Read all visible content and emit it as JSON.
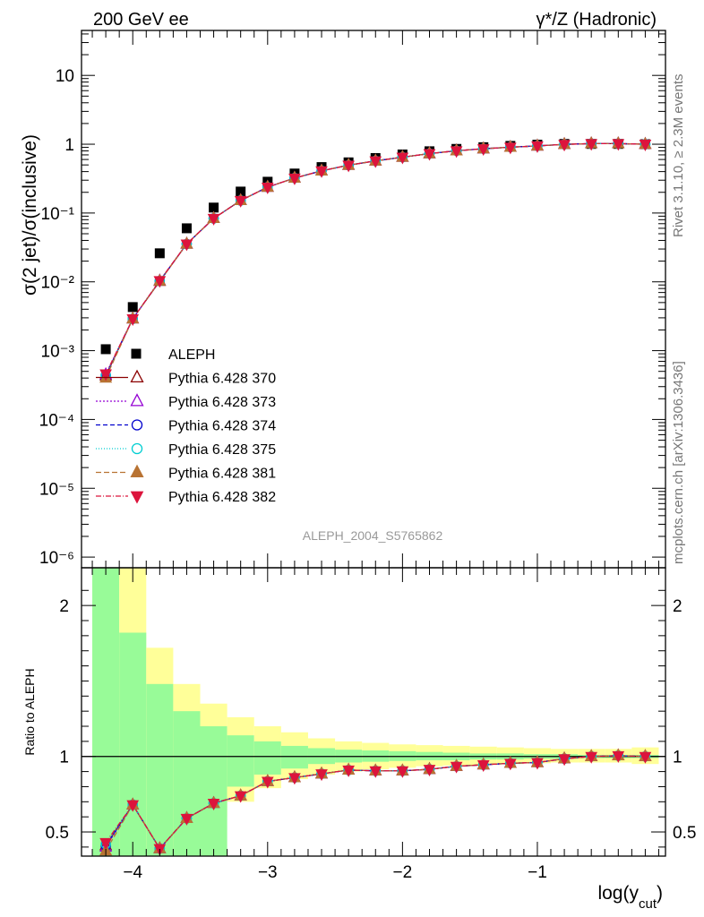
{
  "header": {
    "left_label": "200 GeV ee",
    "right_label": "γ*/Z (Hadronic)"
  },
  "side_labels": {
    "rivet": "Rivet 3.1.10, ≥ 2.3M events",
    "mcplots": "mcplots.cern.ch [arXiv:1306.3436]"
  },
  "analysis_tag": "ALEPH_2004_S5765862",
  "chart_data": [
    {
      "type": "scatter",
      "panel": "main",
      "ylabel": "σ(2 jet)/σ(inclusive)",
      "yscale": "log",
      "xlim": [
        -4.38,
        -0.05
      ],
      "ylim": [
        7e-07,
        45
      ],
      "y_tick_labels": [
        "10",
        "1",
        "10⁻¹",
        "10⁻²",
        "10⁻³",
        "10⁻⁴",
        "10⁻⁵",
        "10⁻⁶"
      ],
      "x": [
        -4.2,
        -4.0,
        -3.8,
        -3.6,
        -3.4,
        -3.2,
        -3.0,
        -2.8,
        -2.6,
        -2.4,
        -2.2,
        -2.0,
        -1.8,
        -1.6,
        -1.4,
        -1.2,
        -1.0,
        -0.8,
        -0.6,
        -0.4,
        -0.2
      ],
      "series": [
        {
          "name": "ALEPH",
          "color": "#000000",
          "marker": "square",
          "values": [
            0.00105,
            0.0043,
            0.026,
            0.06,
            0.12,
            0.205,
            0.285,
            0.375,
            0.465,
            0.545,
            0.63,
            0.71,
            0.79,
            0.855,
            0.905,
            0.945,
            0.985,
            1.01,
            1.01,
            1.01,
            1.0
          ]
        },
        {
          "name": "Pythia 6.428 370",
          "color": "#8b0000",
          "marker": "open-triangle",
          "dash": "",
          "values": [
            0.00043,
            0.0029,
            0.0102,
            0.0355,
            0.0835,
            0.152,
            0.238,
            0.322,
            0.41,
            0.496,
            0.572,
            0.648,
            0.73,
            0.803,
            0.86,
            0.905,
            0.945,
            0.995,
            1.02,
            1.02,
            1.0
          ]
        },
        {
          "name": "Pythia 6.428 373",
          "color": "#9400d3",
          "marker": "open-triangle",
          "dash": "2,2",
          "values": [
            0.00045,
            0.0029,
            0.0104,
            0.0355,
            0.0835,
            0.152,
            0.238,
            0.322,
            0.41,
            0.496,
            0.572,
            0.648,
            0.73,
            0.803,
            0.86,
            0.905,
            0.945,
            0.995,
            1.02,
            1.02,
            1.0
          ]
        },
        {
          "name": "Pythia 6.428 374",
          "color": "#0000cd",
          "marker": "open-circle",
          "dash": "5,3",
          "values": [
            0.00044,
            0.0029,
            0.0103,
            0.0355,
            0.0835,
            0.152,
            0.238,
            0.322,
            0.41,
            0.496,
            0.572,
            0.648,
            0.73,
            0.803,
            0.86,
            0.905,
            0.945,
            0.995,
            1.02,
            1.02,
            1.0
          ]
        },
        {
          "name": "Pythia 6.428 375",
          "color": "#00ced1",
          "marker": "open-circle",
          "dash": "1,2",
          "values": [
            0.00044,
            0.0029,
            0.0103,
            0.0355,
            0.0835,
            0.152,
            0.238,
            0.322,
            0.41,
            0.496,
            0.572,
            0.648,
            0.73,
            0.803,
            0.86,
            0.905,
            0.945,
            0.995,
            1.02,
            1.02,
            1.0
          ]
        },
        {
          "name": "Pythia 6.428 381",
          "color": "#b87333",
          "marker": "filled-triangle",
          "dash": "6,3",
          "values": [
            0.0004,
            0.0029,
            0.0103,
            0.0355,
            0.0835,
            0.152,
            0.238,
            0.322,
            0.41,
            0.496,
            0.572,
            0.648,
            0.73,
            0.803,
            0.86,
            0.905,
            0.945,
            0.995,
            1.02,
            1.02,
            1.0
          ]
        },
        {
          "name": "Pythia 6.428 382",
          "color": "#dc143c",
          "marker": "filled-down-triangle",
          "dash": "6,2,1,2",
          "values": [
            0.00046,
            0.0029,
            0.0104,
            0.0355,
            0.0835,
            0.152,
            0.238,
            0.322,
            0.41,
            0.496,
            0.572,
            0.648,
            0.73,
            0.803,
            0.86,
            0.905,
            0.945,
            0.995,
            1.02,
            1.02,
            1.0
          ]
        }
      ]
    },
    {
      "type": "line",
      "panel": "ratio",
      "xlabel": "log(y_cut)",
      "ylabel": "Ratio to ALEPH",
      "xlim": [
        -4.38,
        -0.05
      ],
      "ylim": [
        0.34,
        2.25
      ],
      "x_tick_labels": [
        "−4",
        "−3",
        "−2",
        "−1"
      ],
      "y_tick_labels": [
        "2",
        "1",
        "0.5"
      ],
      "x": [
        -4.2,
        -4.0,
        -3.8,
        -3.6,
        -3.4,
        -3.2,
        -3.0,
        -2.8,
        -2.6,
        -2.4,
        -2.2,
        -2.0,
        -1.8,
        -1.6,
        -1.4,
        -1.2,
        -1.0,
        -0.8,
        -0.6,
        -0.4,
        -0.2
      ],
      "bin_edges": [
        -4.3,
        -4.1,
        -3.9,
        -3.7,
        -3.5,
        -3.3,
        -3.1,
        -2.9,
        -2.7,
        -2.5,
        -2.3,
        -2.1,
        -1.9,
        -1.7,
        -1.5,
        -1.3,
        -1.1,
        -0.9,
        -0.7,
        -0.5,
        -0.3,
        -0.1
      ],
      "band_stat": {
        "lower": [
          0.34,
          0.34,
          0.34,
          0.34,
          0.34,
          0.8,
          0.88,
          0.92,
          0.95,
          0.96,
          0.965,
          0.97,
          0.975,
          0.975,
          0.98,
          0.98,
          0.985,
          0.985,
          0.99,
          0.99,
          0.99
        ],
        "upper": [
          2.25,
          1.82,
          1.48,
          1.3,
          1.2,
          1.14,
          1.1,
          1.07,
          1.055,
          1.045,
          1.04,
          1.035,
          1.03,
          1.025,
          1.02,
          1.02,
          1.015,
          1.015,
          1.01,
          1.01,
          1.01
        ]
      },
      "band_total": {
        "lower": [
          0.34,
          0.34,
          0.34,
          0.34,
          0.6,
          0.7,
          0.79,
          0.85,
          0.88,
          0.9,
          0.915,
          0.925,
          0.935,
          0.94,
          0.945,
          0.95,
          0.955,
          0.96,
          0.96,
          0.96,
          0.95
        ],
        "upper": [
          2.25,
          2.25,
          1.72,
          1.48,
          1.35,
          1.26,
          1.2,
          1.16,
          1.12,
          1.1,
          1.09,
          1.08,
          1.075,
          1.07,
          1.065,
          1.06,
          1.055,
          1.05,
          1.05,
          1.05,
          1.06
        ]
      },
      "band_colors": {
        "stat": "#98fb98",
        "total": "#ffff99"
      },
      "series": [
        {
          "name": "Pythia 6.428 370",
          "values": [
            0.41,
            0.68,
            0.39,
            0.59,
            0.69,
            0.74,
            0.835,
            0.86,
            0.885,
            0.91,
            0.905,
            0.905,
            0.915,
            0.935,
            0.945,
            0.955,
            0.96,
            0.985,
            1.0,
            1.005,
            1.0
          ]
        },
        {
          "name": "Pythia 6.428 373",
          "values": [
            0.4,
            0.68,
            0.39,
            0.59,
            0.69,
            0.74,
            0.835,
            0.86,
            0.885,
            0.91,
            0.905,
            0.905,
            0.915,
            0.935,
            0.945,
            0.955,
            0.96,
            0.985,
            1.0,
            1.005,
            1.0
          ]
        },
        {
          "name": "Pythia 6.428 374",
          "values": [
            0.41,
            0.68,
            0.39,
            0.59,
            0.69,
            0.74,
            0.835,
            0.86,
            0.885,
            0.91,
            0.905,
            0.905,
            0.915,
            0.935,
            0.945,
            0.955,
            0.96,
            0.985,
            1.0,
            1.005,
            1.0
          ]
        },
        {
          "name": "Pythia 6.428 375",
          "values": [
            0.42,
            0.68,
            0.39,
            0.59,
            0.69,
            0.74,
            0.835,
            0.86,
            0.885,
            0.91,
            0.905,
            0.905,
            0.915,
            0.935,
            0.945,
            0.955,
            0.96,
            0.985,
            1.0,
            1.005,
            1.0
          ]
        },
        {
          "name": "Pythia 6.428 381",
          "values": [
            0.375,
            0.68,
            0.39,
            0.59,
            0.69,
            0.74,
            0.835,
            0.86,
            0.885,
            0.91,
            0.905,
            0.905,
            0.915,
            0.935,
            0.945,
            0.955,
            0.96,
            0.985,
            1.0,
            1.005,
            1.0
          ]
        },
        {
          "name": "Pythia 6.428 382",
          "values": [
            0.43,
            0.68,
            0.39,
            0.59,
            0.69,
            0.74,
            0.835,
            0.86,
            0.885,
            0.91,
            0.905,
            0.905,
            0.915,
            0.935,
            0.945,
            0.955,
            0.96,
            0.985,
            1.0,
            1.005,
            1.0
          ]
        }
      ]
    }
  ]
}
